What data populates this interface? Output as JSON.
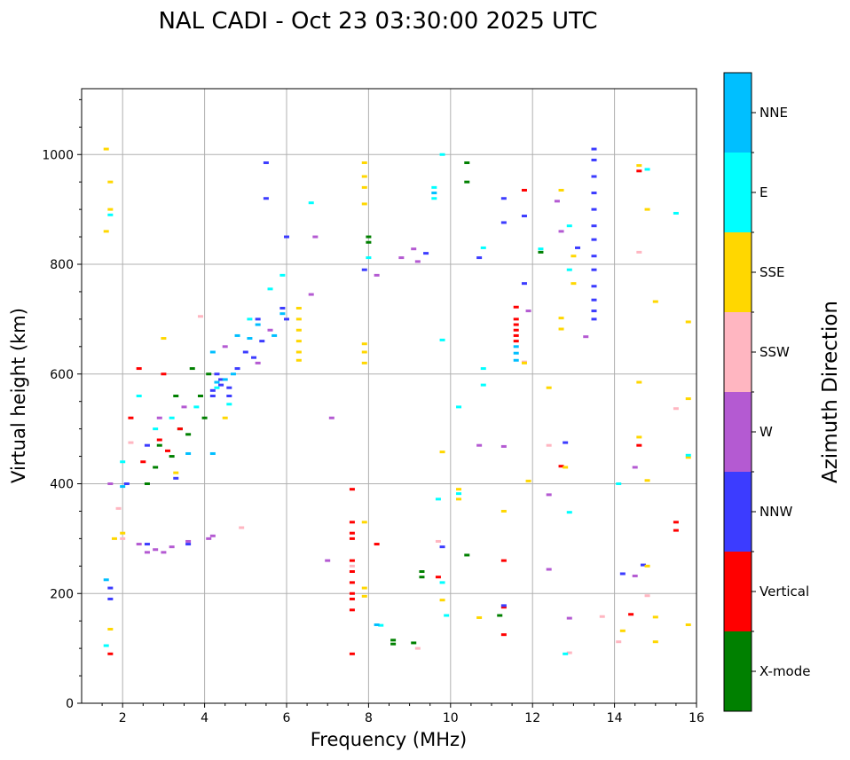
{
  "chart_data": {
    "type": "scatter",
    "title": "NAL CADI - Oct 23 03:30:00 2025 UTC",
    "xlabel": "Frequency (MHz)",
    "ylabel": "Virtual height (km)",
    "xlim": [
      1,
      16
    ],
    "ylim": [
      0,
      1120
    ],
    "xticks": [
      2,
      4,
      6,
      8,
      10,
      12,
      14,
      16
    ],
    "yticks": [
      0,
      200,
      400,
      600,
      800,
      1000
    ],
    "grid": true,
    "colorbar": {
      "title": "Azimuth Direction",
      "position": "right",
      "categories": [
        {
          "name": "X-mode",
          "color": "#008000"
        },
        {
          "name": "Vertical",
          "color": "#ff0000"
        },
        {
          "name": "NNW",
          "color": "#3c3cff"
        },
        {
          "name": "W",
          "color": "#b45ad2"
        },
        {
          "name": "SSW",
          "color": "#ffb6c1"
        },
        {
          "name": "SSE",
          "color": "#ffd700"
        },
        {
          "name": "E",
          "color": "#00ffff"
        },
        {
          "name": "NNE",
          "color": "#00bfff"
        }
      ]
    },
    "series": [
      {
        "name": "X-mode",
        "points": [
          [
            2.6,
            400
          ],
          [
            2.9,
            470
          ],
          [
            3.2,
            450
          ],
          [
            3.4,
            500
          ],
          [
            3.6,
            490
          ],
          [
            3.9,
            560
          ],
          [
            4.0,
            520
          ],
          [
            4.1,
            600
          ],
          [
            3.3,
            560
          ],
          [
            3.7,
            610
          ],
          [
            2.8,
            430
          ],
          [
            8.0,
            850
          ],
          [
            8.0,
            840
          ],
          [
            8.6,
            115
          ],
          [
            8.6,
            108
          ],
          [
            9.1,
            110
          ],
          [
            9.3,
            240
          ],
          [
            9.3,
            230
          ],
          [
            10.4,
            950
          ],
          [
            10.4,
            985
          ],
          [
            10.4,
            270
          ],
          [
            11.2,
            160
          ],
          [
            12.2,
            822
          ]
        ]
      },
      {
        "name": "Vertical",
        "points": [
          [
            1.7,
            90
          ],
          [
            2.2,
            520
          ],
          [
            2.4,
            610
          ],
          [
            2.5,
            440
          ],
          [
            2.9,
            480
          ],
          [
            3.1,
            460
          ],
          [
            3.0,
            600
          ],
          [
            3.4,
            500
          ],
          [
            7.6,
            390
          ],
          [
            7.6,
            330
          ],
          [
            7.6,
            310
          ],
          [
            7.6,
            300
          ],
          [
            7.6,
            260
          ],
          [
            7.6,
            240
          ],
          [
            7.6,
            220
          ],
          [
            7.6,
            200
          ],
          [
            7.6,
            190
          ],
          [
            7.6,
            170
          ],
          [
            7.6,
            90
          ],
          [
            8.2,
            290
          ],
          [
            9.7,
            230
          ],
          [
            11.3,
            260
          ],
          [
            11.3,
            175
          ],
          [
            11.3,
            125
          ],
          [
            11.6,
            700
          ],
          [
            11.6,
            690
          ],
          [
            11.6,
            680
          ],
          [
            11.6,
            670
          ],
          [
            11.6,
            660
          ],
          [
            11.6,
            722
          ],
          [
            11.8,
            935
          ],
          [
            12.7,
            432
          ],
          [
            14.4,
            162
          ],
          [
            14.6,
            970
          ],
          [
            14.6,
            470
          ],
          [
            15.5,
            330
          ],
          [
            15.5,
            315
          ]
        ]
      },
      {
        "name": "NNW",
        "points": [
          [
            1.7,
            210
          ],
          [
            1.7,
            190
          ],
          [
            2.1,
            400
          ],
          [
            2.6,
            470
          ],
          [
            3.3,
            410
          ],
          [
            4.2,
            560
          ],
          [
            4.2,
            570
          ],
          [
            4.4,
            580
          ],
          [
            4.4,
            590
          ],
          [
            4.6,
            560
          ],
          [
            4.6,
            575
          ],
          [
            4.3,
            600
          ],
          [
            4.8,
            610
          ],
          [
            5.0,
            640
          ],
          [
            5.2,
            630
          ],
          [
            5.3,
            700
          ],
          [
            5.4,
            660
          ],
          [
            5.9,
            720
          ],
          [
            6.0,
            700
          ],
          [
            5.5,
            985
          ],
          [
            5.5,
            920
          ],
          [
            6.0,
            850
          ],
          [
            7.9,
            790
          ],
          [
            9.4,
            820
          ],
          [
            9.8,
            285
          ],
          [
            10.7,
            812
          ],
          [
            11.3,
            920
          ],
          [
            11.3,
            876
          ],
          [
            11.3,
            178
          ],
          [
            11.8,
            888
          ],
          [
            11.8,
            765
          ],
          [
            12.8,
            475
          ],
          [
            13.1,
            830
          ],
          [
            13.5,
            1010
          ],
          [
            13.5,
            990
          ],
          [
            13.5,
            960
          ],
          [
            13.5,
            930
          ],
          [
            13.5,
            900
          ],
          [
            13.5,
            870
          ],
          [
            13.5,
            845
          ],
          [
            13.5,
            815
          ],
          [
            13.5,
            790
          ],
          [
            13.5,
            760
          ],
          [
            13.5,
            735
          ],
          [
            13.5,
            715
          ],
          [
            13.5,
            700
          ],
          [
            14.2,
            236
          ],
          [
            14.7,
            252
          ],
          [
            3.6,
            290
          ],
          [
            2.6,
            290
          ]
        ]
      },
      {
        "name": "W",
        "points": [
          [
            1.7,
            400
          ],
          [
            2.4,
            290
          ],
          [
            2.6,
            275
          ],
          [
            2.8,
            280
          ],
          [
            3.0,
            275
          ],
          [
            3.2,
            285
          ],
          [
            3.6,
            295
          ],
          [
            2.9,
            520
          ],
          [
            3.5,
            540
          ],
          [
            4.1,
            300
          ],
          [
            4.2,
            305
          ],
          [
            4.5,
            650
          ],
          [
            5.3,
            620
          ],
          [
            5.6,
            680
          ],
          [
            6.6,
            745
          ],
          [
            6.7,
            850
          ],
          [
            7.1,
            520
          ],
          [
            7.0,
            260
          ],
          [
            8.2,
            780
          ],
          [
            8.8,
            812
          ],
          [
            9.1,
            828
          ],
          [
            9.2,
            805
          ],
          [
            10.7,
            470
          ],
          [
            11.3,
            468
          ],
          [
            12.4,
            380
          ],
          [
            12.4,
            244
          ],
          [
            12.6,
            915
          ],
          [
            12.7,
            860
          ],
          [
            12.9,
            155
          ],
          [
            13.3,
            668
          ],
          [
            14.5,
            430
          ],
          [
            14.5,
            232
          ],
          [
            11.9,
            715
          ]
        ]
      },
      {
        "name": "SSW",
        "points": [
          [
            1.9,
            355
          ],
          [
            2.2,
            475
          ],
          [
            2.0,
            300
          ],
          [
            3.9,
            705
          ],
          [
            4.9,
            320
          ],
          [
            7.6,
            250
          ],
          [
            9.2,
            100
          ],
          [
            9.7,
            295
          ],
          [
            12.4,
            470
          ],
          [
            12.9,
            92
          ],
          [
            13.7,
            158
          ],
          [
            14.1,
            112
          ],
          [
            14.6,
            822
          ],
          [
            14.8,
            196
          ],
          [
            15.5,
            537
          ],
          [
            11.8,
            622
          ]
        ]
      },
      {
        "name": "SSE",
        "points": [
          [
            1.6,
            1010
          ],
          [
            1.7,
            950
          ],
          [
            1.7,
            900
          ],
          [
            1.6,
            860
          ],
          [
            1.7,
            135
          ],
          [
            1.8,
            300
          ],
          [
            2.0,
            310
          ],
          [
            3.0,
            665
          ],
          [
            3.3,
            420
          ],
          [
            4.5,
            520
          ],
          [
            6.3,
            720
          ],
          [
            6.3,
            700
          ],
          [
            6.3,
            680
          ],
          [
            6.3,
            660
          ],
          [
            6.3,
            640
          ],
          [
            6.3,
            625
          ],
          [
            7.9,
            985
          ],
          [
            7.9,
            960
          ],
          [
            7.9,
            940
          ],
          [
            7.9,
            910
          ],
          [
            7.9,
            655
          ],
          [
            7.9,
            640
          ],
          [
            7.9,
            620
          ],
          [
            7.9,
            330
          ],
          [
            7.9,
            210
          ],
          [
            7.9,
            195
          ],
          [
            9.8,
            458
          ],
          [
            9.8,
            188
          ],
          [
            10.2,
            372
          ],
          [
            10.2,
            390
          ],
          [
            10.7,
            156
          ],
          [
            11.3,
            350
          ],
          [
            11.8,
            620
          ],
          [
            11.9,
            405
          ],
          [
            12.4,
            575
          ],
          [
            12.7,
            935
          ],
          [
            12.7,
            702
          ],
          [
            12.7,
            682
          ],
          [
            12.8,
            430
          ],
          [
            13.0,
            815
          ],
          [
            13.0,
            765
          ],
          [
            14.2,
            132
          ],
          [
            14.6,
            980
          ],
          [
            14.6,
            585
          ],
          [
            14.6,
            485
          ],
          [
            14.8,
            900
          ],
          [
            14.8,
            406
          ],
          [
            14.8,
            250
          ],
          [
            15.0,
            732
          ],
          [
            15.0,
            157
          ],
          [
            15.0,
            112
          ],
          [
            15.8,
            695
          ],
          [
            15.8,
            555
          ],
          [
            15.8,
            448
          ],
          [
            15.8,
            143
          ]
        ]
      },
      {
        "name": "E",
        "points": [
          [
            1.6,
            105
          ],
          [
            1.7,
            890
          ],
          [
            2.0,
            440
          ],
          [
            2.4,
            560
          ],
          [
            2.8,
            500
          ],
          [
            3.2,
            520
          ],
          [
            3.8,
            540
          ],
          [
            4.3,
            575
          ],
          [
            4.6,
            545
          ],
          [
            5.1,
            700
          ],
          [
            5.6,
            755
          ],
          [
            5.9,
            780
          ],
          [
            6.6,
            912
          ],
          [
            8.0,
            812
          ],
          [
            9.6,
            940
          ],
          [
            9.6,
            920
          ],
          [
            9.8,
            1000
          ],
          [
            9.8,
            662
          ],
          [
            9.7,
            372
          ],
          [
            9.8,
            220
          ],
          [
            10.2,
            540
          ],
          [
            10.2,
            382
          ],
          [
            10.8,
            830
          ],
          [
            10.8,
            610
          ],
          [
            10.8,
            580
          ],
          [
            12.2,
            828
          ],
          [
            12.8,
            90
          ],
          [
            12.9,
            870
          ],
          [
            12.9,
            790
          ],
          [
            12.9,
            348
          ],
          [
            14.1,
            400
          ],
          [
            14.8,
            973
          ],
          [
            15.5,
            893
          ],
          [
            15.8,
            452
          ],
          [
            8.3,
            142
          ],
          [
            9.9,
            160
          ]
        ]
      },
      {
        "name": "NNE",
        "points": [
          [
            1.6,
            225
          ],
          [
            2.0,
            395
          ],
          [
            3.6,
            455
          ],
          [
            4.2,
            640
          ],
          [
            4.3,
            585
          ],
          [
            4.5,
            590
          ],
          [
            4.7,
            600
          ],
          [
            4.2,
            455
          ],
          [
            4.8,
            670
          ],
          [
            5.1,
            665
          ],
          [
            5.3,
            690
          ],
          [
            5.7,
            670
          ],
          [
            5.9,
            710
          ],
          [
            8.2,
            143
          ],
          [
            9.6,
            930
          ],
          [
            11.6,
            650
          ],
          [
            11.6,
            638
          ],
          [
            11.6,
            625
          ]
        ]
      }
    ]
  }
}
